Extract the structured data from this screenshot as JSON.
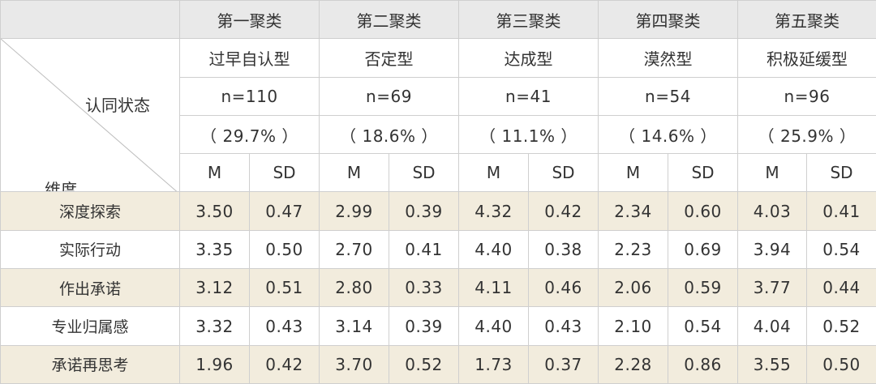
{
  "corner": {
    "status_label": "认同状态",
    "dimension_label": "维度"
  },
  "clusters": [
    {
      "name": "第一聚类",
      "type": "过早自认型",
      "n": "n=110",
      "pct": "（ 29.7% ）"
    },
    {
      "name": "第二聚类",
      "type": "否定型",
      "n": "n=69",
      "pct": "（ 18.6% ）"
    },
    {
      "name": "第三聚类",
      "type": "达成型",
      "n": "n=41",
      "pct": "（ 11.1% ）"
    },
    {
      "name": "第四聚类",
      "type": "漠然型",
      "n": "n=54",
      "pct": "（ 14.6% ）"
    },
    {
      "name": "第五聚类",
      "type": "积极延缓型",
      "n": "n=96",
      "pct": "（ 25.9% ）"
    }
  ],
  "stat_headers": {
    "m": "M",
    "sd": "SD"
  },
  "rows": [
    {
      "label": "深度探索",
      "values": [
        "3.50",
        "0.47",
        "2.99",
        "0.39",
        "4.32",
        "0.42",
        "2.34",
        "0.60",
        "4.03",
        "0.41"
      ]
    },
    {
      "label": "实际行动",
      "values": [
        "3.35",
        "0.50",
        "2.70",
        "0.41",
        "4.40",
        "0.38",
        "2.23",
        "0.69",
        "3.94",
        "0.54"
      ]
    },
    {
      "label": "作出承诺",
      "values": [
        "3.12",
        "0.51",
        "2.80",
        "0.33",
        "4.11",
        "0.46",
        "2.06",
        "0.59",
        "3.77",
        "0.44"
      ]
    },
    {
      "label": "专业归属感",
      "values": [
        "3.32",
        "0.43",
        "3.14",
        "0.39",
        "4.40",
        "0.43",
        "2.10",
        "0.54",
        "4.04",
        "0.52"
      ]
    },
    {
      "label": "承诺再思考",
      "values": [
        "1.96",
        "0.42",
        "3.70",
        "0.52",
        "1.73",
        "0.37",
        "2.28",
        "0.86",
        "3.55",
        "0.50"
      ]
    }
  ],
  "colors": {
    "header_bg": "#e9e9e9",
    "band_bg": "#f2ecdd",
    "border": "#cfcfcf",
    "text": "#333333"
  }
}
